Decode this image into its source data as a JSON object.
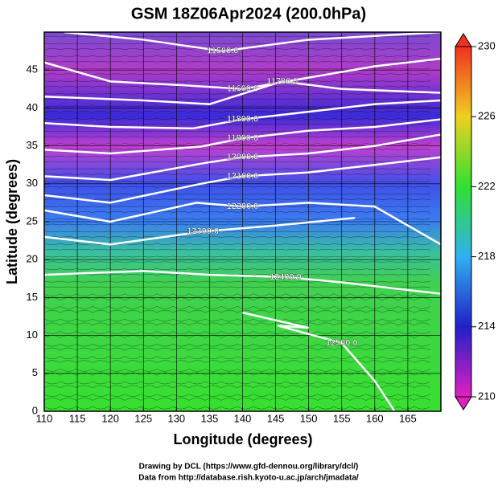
{
  "chart_data": {
    "type": "contour",
    "title": "GSM 18Z06Apr2024 (200.0hPa)",
    "x_label": "Longitude (degrees)",
    "y_label": "Latitude  (degrees)",
    "xlim": [
      110,
      170
    ],
    "ylim": [
      0,
      50
    ],
    "xticks": [
      110,
      115,
      120,
      125,
      130,
      135,
      140,
      145,
      150,
      155,
      160,
      165
    ],
    "yticks": [
      0,
      5,
      10,
      15,
      20,
      25,
      30,
      35,
      40,
      45
    ],
    "grid": true,
    "colorbar": {
      "lim": [
        210,
        230
      ],
      "ticks": [
        210,
        214,
        218,
        222,
        226,
        230
      ]
    },
    "contours": [
      {
        "level": {
          "value": 11500,
          "label": "11500.0"
        },
        "lon": [
          113,
          125,
          137,
          150,
          170
        ],
        "lat": [
          50,
          49,
          47.5,
          49,
          50
        ]
      },
      {
        "level": {
          "value": 11600,
          "label": "11600.0"
        },
        "lon": [
          110,
          120,
          131,
          140,
          150,
          160,
          170
        ],
        "lat": [
          46,
          43.5,
          43,
          42.5,
          44,
          45.5,
          46.5
        ]
      },
      {
        "level": {
          "value": 11700,
          "label": "11700.0"
        },
        "lon": [
          110,
          125,
          135,
          146,
          155,
          170
        ],
        "lat": [
          41.5,
          41,
          40.5,
          43.5,
          42.5,
          42
        ]
      },
      {
        "level": {
          "value": 11800,
          "label": "11800.0"
        },
        "lon": [
          110,
          120,
          132.5,
          140,
          150,
          160,
          170
        ],
        "lat": [
          38,
          37.5,
          37.3,
          38.5,
          39.5,
          40.5,
          41
        ]
      },
      {
        "level": {
          "value": 11900,
          "label": "11900.0"
        },
        "lon": [
          110,
          120,
          133.7,
          140,
          150,
          160,
          170
        ],
        "lat": [
          34.5,
          34,
          34.9,
          36,
          37,
          37.5,
          38.5
        ]
      },
      {
        "level": {
          "value": 12000,
          "label": "12000.0"
        },
        "lon": [
          110,
          120,
          134,
          140,
          150,
          160,
          170
        ],
        "lat": [
          31,
          30.5,
          32.7,
          33.5,
          34,
          35,
          36.5
        ]
      },
      {
        "level": {
          "value": 12100,
          "label": "12100.0"
        },
        "lon": [
          110,
          120,
          133.7,
          140,
          150,
          160,
          170
        ],
        "lat": [
          28.5,
          27.5,
          30,
          31,
          31.5,
          32.5,
          33.5
        ]
      },
      {
        "level": {
          "value": 12200,
          "label": "12200.0"
        },
        "lon": [
          110,
          120,
          133,
          140,
          150,
          160,
          170
        ],
        "lat": [
          26.5,
          25,
          27.5,
          27,
          27.5,
          27,
          22
        ]
      },
      {
        "level": {
          "value": 12300,
          "label": "12300.0"
        },
        "lon": [
          110,
          120,
          134,
          145,
          157
        ],
        "lat": [
          23,
          22,
          23.7,
          24.5,
          25.5
        ]
      },
      {
        "level": {
          "value": 12400,
          "label": "12400.0"
        },
        "lon": [
          110,
          125,
          135,
          146.5,
          155,
          165,
          170
        ],
        "lat": [
          18,
          18.5,
          18,
          17.7,
          17,
          16,
          15.5
        ]
      },
      {
        "level": {
          "value": 12500,
          "label": "12500.0"
        },
        "lon": [
          140,
          150,
          145.3,
          155,
          160,
          163
        ],
        "lat": [
          13,
          11,
          11.3,
          9,
          4,
          0
        ]
      }
    ],
    "credits": [
      "Drawing by DCL (https://www.gfd-dennou.org/library/dcl/)",
      "Data from http://database.rish.kyoto-u.ac.jp/arch/jmadata/"
    ]
  }
}
